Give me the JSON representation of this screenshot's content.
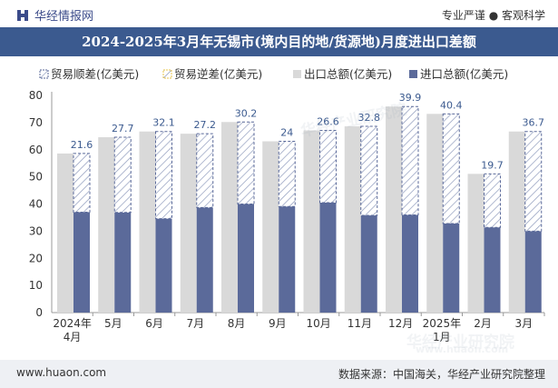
{
  "header": {
    "brand": "华经情报网",
    "tagline": "专业严谨 ● 客观科学"
  },
  "footer": {
    "website": "www.huaon.com",
    "source": "数据来源：中国海关，华经产业研究院整理"
  },
  "watermarks": [
    "华经产业研究院",
    "华经产业研究院",
    "www.huaon.com"
  ],
  "colors": {
    "title_bg": "#3b5a8f",
    "export": "#d9d9d9",
    "import": "#5b6a9a",
    "surplus_border": "#5b6a9a",
    "deficit_border": "#e8c547"
  },
  "chart_data": {
    "type": "bar",
    "title": "2024-2025年3月年无锡市(境内目的地/货源地)月度进出口差额",
    "categories": [
      "2024年4月",
      "5月",
      "6月",
      "7月",
      "8月",
      "9月",
      "10月",
      "11月",
      "12月",
      "2025年1月",
      "2月",
      "3月"
    ],
    "legend": [
      "贸易顺差(亿美元)",
      "贸易逆差(亿美元)",
      "出口总额(亿美元)",
      "进口总额(亿美元)"
    ],
    "series": [
      {
        "name": "贸易顺差(亿美元)",
        "values": [
          21.6,
          27.7,
          32.1,
          27.2,
          30.2,
          24,
          26.6,
          32.8,
          39.9,
          40.4,
          19.7,
          36.7
        ]
      },
      {
        "name": "贸易逆差(亿美元)",
        "values": [
          0,
          0,
          0,
          0,
          0,
          0,
          0,
          0,
          0,
          0,
          0,
          0
        ]
      },
      {
        "name": "出口总额(亿美元)",
        "values": [
          58.6,
          64.6,
          66.7,
          65.9,
          70.2,
          63.1,
          67.1,
          68.6,
          75.9,
          73.2,
          51.1,
          66.7
        ]
      },
      {
        "name": "进口总额(亿美元)",
        "values": [
          37.0,
          36.9,
          34.6,
          38.7,
          40.0,
          39.1,
          40.5,
          35.8,
          36.0,
          32.8,
          31.4,
          30.0
        ]
      }
    ],
    "ylim": [
      0,
      80
    ],
    "yticks": [
      0,
      10,
      20,
      30,
      40,
      50,
      60,
      70,
      80
    ],
    "legend_position": "top"
  }
}
